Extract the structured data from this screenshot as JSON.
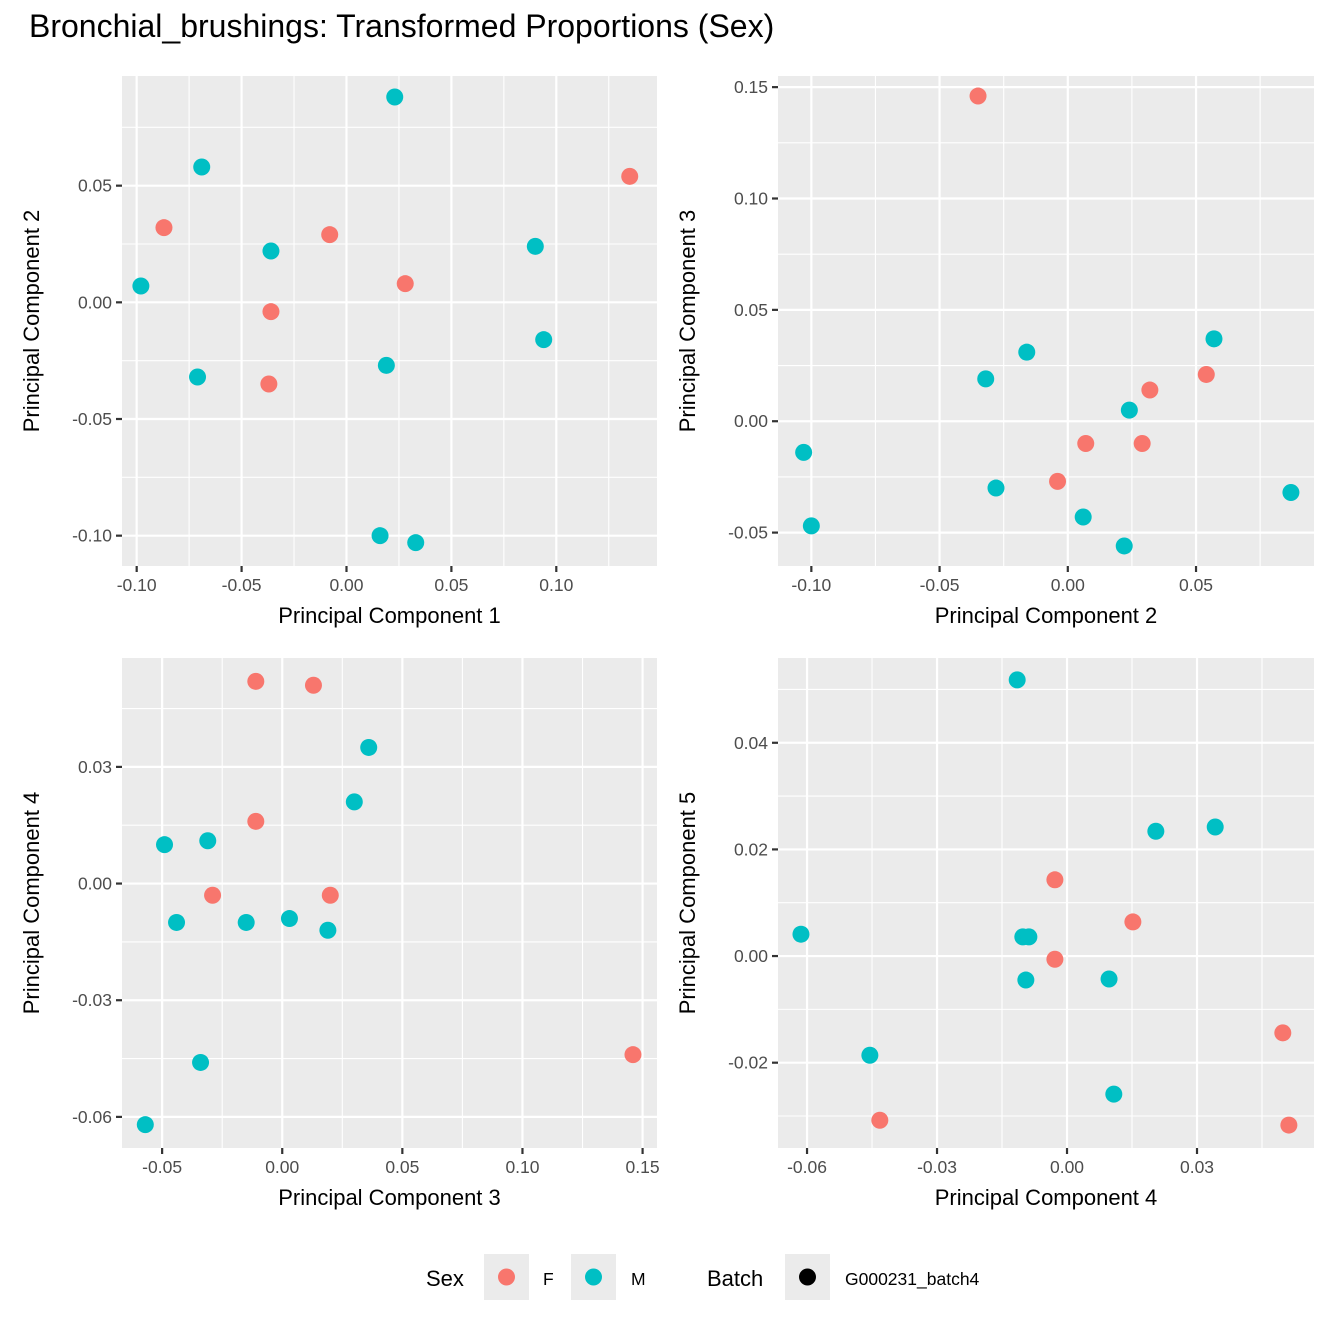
{
  "title": "Bronchial_brushings: Transformed Proportions (Sex)",
  "colors": {
    "F": "#F8766D",
    "M": "#00BFC4",
    "panel_bg": "#EBEBEB",
    "grid": "#FFFFFF",
    "batch": "#000000"
  },
  "legend": {
    "sex_title": "Sex",
    "sex_items": [
      {
        "key": "F",
        "label": "F"
      },
      {
        "key": "M",
        "label": "M"
      }
    ],
    "batch_title": "Batch",
    "batch_items": [
      {
        "label": "G000231_batch4"
      }
    ]
  },
  "chart_data": [
    {
      "type": "scatter",
      "title": "",
      "xlabel": "Principal Component 1",
      "ylabel": "Principal Component 2",
      "xlim": [
        -0.107,
        0.148
      ],
      "ylim": [
        -0.113,
        0.097
      ],
      "xticks": [
        -0.1,
        -0.05,
        0.0,
        0.05,
        0.1
      ],
      "xtick_labels": [
        "-0.10",
        "-0.05",
        "0.00",
        "0.05",
        "0.10"
      ],
      "yticks": [
        -0.1,
        -0.05,
        0.0,
        0.05
      ],
      "ytick_labels": [
        "-0.10",
        "-0.05",
        "0.00",
        "0.05"
      ],
      "grid": true,
      "points": [
        {
          "x": 0.023,
          "y": 0.088,
          "sex": "M"
        },
        {
          "x": -0.069,
          "y": 0.058,
          "sex": "M"
        },
        {
          "x": 0.135,
          "y": 0.054,
          "sex": "F"
        },
        {
          "x": -0.087,
          "y": 0.032,
          "sex": "F"
        },
        {
          "x": -0.008,
          "y": 0.029,
          "sex": "F"
        },
        {
          "x": -0.036,
          "y": 0.022,
          "sex": "M"
        },
        {
          "x": 0.09,
          "y": 0.024,
          "sex": "M"
        },
        {
          "x": -0.098,
          "y": 0.007,
          "sex": "M"
        },
        {
          "x": 0.028,
          "y": 0.008,
          "sex": "F"
        },
        {
          "x": -0.036,
          "y": -0.004,
          "sex": "F"
        },
        {
          "x": 0.094,
          "y": -0.016,
          "sex": "M"
        },
        {
          "x": -0.071,
          "y": -0.032,
          "sex": "M"
        },
        {
          "x": -0.037,
          "y": -0.035,
          "sex": "F"
        },
        {
          "x": 0.019,
          "y": -0.027,
          "sex": "M"
        },
        {
          "x": 0.016,
          "y": -0.1,
          "sex": "M"
        },
        {
          "x": 0.033,
          "y": -0.103,
          "sex": "M"
        }
      ]
    },
    {
      "type": "scatter",
      "title": "",
      "xlabel": "Principal Component 2",
      "ylabel": "Principal Component 3",
      "xlim": [
        -0.113,
        0.096
      ],
      "ylim": [
        -0.065,
        0.155
      ],
      "xticks": [
        -0.1,
        -0.05,
        0.0,
        0.05
      ],
      "xtick_labels": [
        "-0.10",
        "-0.05",
        "0.00",
        "0.05"
      ],
      "yticks": [
        -0.05,
        0.0,
        0.05,
        0.1,
        0.15
      ],
      "ytick_labels": [
        "-0.05",
        "0.00",
        "0.05",
        "0.10",
        "0.15"
      ],
      "grid": true,
      "points": [
        {
          "x": -0.035,
          "y": 0.146,
          "sex": "F"
        },
        {
          "x": 0.057,
          "y": 0.037,
          "sex": "M"
        },
        {
          "x": -0.016,
          "y": 0.031,
          "sex": "M"
        },
        {
          "x": -0.032,
          "y": 0.019,
          "sex": "M"
        },
        {
          "x": 0.054,
          "y": 0.021,
          "sex": "F"
        },
        {
          "x": 0.032,
          "y": 0.014,
          "sex": "F"
        },
        {
          "x": 0.024,
          "y": 0.005,
          "sex": "M"
        },
        {
          "x": 0.007,
          "y": -0.01,
          "sex": "F"
        },
        {
          "x": 0.029,
          "y": -0.01,
          "sex": "F"
        },
        {
          "x": -0.103,
          "y": -0.014,
          "sex": "M"
        },
        {
          "x": -0.004,
          "y": -0.027,
          "sex": "F"
        },
        {
          "x": -0.028,
          "y": -0.03,
          "sex": "M"
        },
        {
          "x": 0.087,
          "y": -0.032,
          "sex": "M"
        },
        {
          "x": 0.006,
          "y": -0.043,
          "sex": "M"
        },
        {
          "x": -0.1,
          "y": -0.047,
          "sex": "M"
        },
        {
          "x": 0.022,
          "y": -0.056,
          "sex": "M"
        }
      ]
    },
    {
      "type": "scatter",
      "title": "",
      "xlabel": "Principal Component 3",
      "ylabel": "Principal Component 4",
      "xlim": [
        -0.0667,
        0.156
      ],
      "ylim": [
        -0.068,
        0.058
      ],
      "xticks": [
        -0.05,
        0.0,
        0.05,
        0.1,
        0.15
      ],
      "xtick_labels": [
        "-0.05",
        "0.00",
        "0.05",
        "0.10",
        "0.15"
      ],
      "yticks": [
        -0.06,
        -0.03,
        0.0,
        0.03
      ],
      "ytick_labels": [
        "-0.06",
        "-0.03",
        "0.00",
        "0.03"
      ],
      "grid": true,
      "points": [
        {
          "x": -0.011,
          "y": 0.052,
          "sex": "F"
        },
        {
          "x": 0.013,
          "y": 0.051,
          "sex": "F"
        },
        {
          "x": 0.036,
          "y": 0.035,
          "sex": "M"
        },
        {
          "x": 0.03,
          "y": 0.021,
          "sex": "M"
        },
        {
          "x": -0.011,
          "y": 0.016,
          "sex": "F"
        },
        {
          "x": -0.049,
          "y": 0.01,
          "sex": "M"
        },
        {
          "x": -0.031,
          "y": 0.011,
          "sex": "M"
        },
        {
          "x": -0.029,
          "y": -0.003,
          "sex": "F"
        },
        {
          "x": 0.02,
          "y": -0.003,
          "sex": "F"
        },
        {
          "x": -0.044,
          "y": -0.01,
          "sex": "M"
        },
        {
          "x": -0.015,
          "y": -0.01,
          "sex": "M"
        },
        {
          "x": 0.003,
          "y": -0.009,
          "sex": "M"
        },
        {
          "x": 0.019,
          "y": -0.012,
          "sex": "M"
        },
        {
          "x": -0.034,
          "y": -0.046,
          "sex": "M"
        },
        {
          "x": 0.146,
          "y": -0.044,
          "sex": "F"
        },
        {
          "x": -0.057,
          "y": -0.062,
          "sex": "M"
        }
      ]
    },
    {
      "type": "scatter",
      "title": "",
      "xlabel": "Principal Component 4",
      "ylabel": "Principal Component 5",
      "xlim": [
        -0.0667,
        0.057
      ],
      "ylim": [
        -0.036,
        0.0559
      ],
      "xticks": [
        -0.06,
        -0.03,
        0.0,
        0.03
      ],
      "xtick_labels": [
        "-0.06",
        "-0.03",
        "0.00",
        "0.03"
      ],
      "yticks": [
        -0.02,
        0.0,
        0.02,
        0.04
      ],
      "ytick_labels": [
        "-0.02",
        "0.00",
        "0.02",
        "0.04"
      ],
      "grid": true,
      "points": [
        {
          "x": -0.0115,
          "y": 0.0518,
          "sex": "M"
        },
        {
          "x": 0.0205,
          "y": 0.0234,
          "sex": "M"
        },
        {
          "x": 0.0342,
          "y": 0.0242,
          "sex": "M"
        },
        {
          "x": -0.0028,
          "y": 0.0143,
          "sex": "F"
        },
        {
          "x": 0.0152,
          "y": 0.0064,
          "sex": "F"
        },
        {
          "x": -0.0614,
          "y": 0.0041,
          "sex": "M"
        },
        {
          "x": -0.0102,
          "y": 0.0036,
          "sex": "M"
        },
        {
          "x": -0.0088,
          "y": 0.0036,
          "sex": "M"
        },
        {
          "x": -0.0028,
          "y": -0.0006,
          "sex": "F"
        },
        {
          "x": -0.0095,
          "y": -0.0045,
          "sex": "M"
        },
        {
          "x": 0.0097,
          "y": -0.0043,
          "sex": "M"
        },
        {
          "x": 0.0498,
          "y": -0.0144,
          "sex": "F"
        },
        {
          "x": -0.0455,
          "y": -0.0186,
          "sex": "M"
        },
        {
          "x": 0.0108,
          "y": -0.0259,
          "sex": "M"
        },
        {
          "x": -0.0432,
          "y": -0.0308,
          "sex": "F"
        },
        {
          "x": 0.0512,
          "y": -0.0317,
          "sex": "F"
        }
      ]
    }
  ]
}
